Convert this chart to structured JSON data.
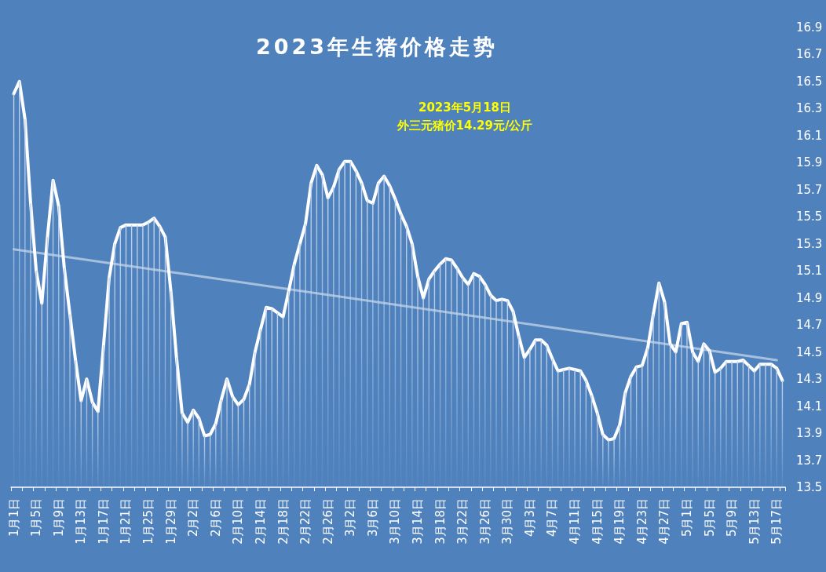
{
  "chart_data": {
    "type": "line",
    "title": "2023年生猪价格走势",
    "annotations": [
      "2023年5月18日",
      "外三元猪价14.29元/公斤"
    ],
    "categories": [
      "1月1日",
      null,
      null,
      null,
      "1月5日",
      null,
      null,
      null,
      "1月9日",
      null,
      null,
      null,
      "1月13日",
      null,
      null,
      null,
      "1月17日",
      null,
      null,
      null,
      "1月21日",
      null,
      null,
      null,
      "1月25日",
      null,
      null,
      null,
      "1月29日",
      null,
      null,
      null,
      "2月2日",
      null,
      null,
      null,
      "2月6日",
      null,
      null,
      null,
      "2月10日",
      null,
      null,
      null,
      "2月14日",
      null,
      null,
      null,
      "2月18日",
      null,
      null,
      null,
      "2月22日",
      null,
      null,
      null,
      "2月26日",
      null,
      null,
      null,
      "3月2日",
      null,
      null,
      null,
      "3月6日",
      null,
      null,
      null,
      "3月10日",
      null,
      null,
      null,
      "3月14日",
      null,
      null,
      null,
      "3月18日",
      null,
      null,
      null,
      "3月22日",
      null,
      null,
      null,
      "3月26日",
      null,
      null,
      null,
      "3月30日",
      null,
      null,
      null,
      "4月3日",
      null,
      null,
      null,
      "4月7日",
      null,
      null,
      null,
      "4月11日",
      null,
      null,
      null,
      "4月15日",
      null,
      null,
      null,
      "4月19日",
      null,
      null,
      null,
      "4月23日",
      null,
      null,
      null,
      "4月27日",
      null,
      null,
      null,
      "5月1日",
      null,
      null,
      null,
      "5月5日",
      null,
      null,
      null,
      "5月9日",
      null,
      null,
      null,
      "5月13日",
      null,
      null,
      null,
      "5月17日",
      null
    ],
    "series": [
      {
        "type": "bar",
        "color": "#c2d5ee",
        "values": [
          16.41,
          16.5,
          16.22,
          15.6,
          15.1,
          14.86,
          15.35,
          15.77,
          15.58,
          15.12,
          14.78,
          14.44,
          14.14,
          14.3,
          14.13,
          14.06,
          14.55,
          15.05,
          15.3,
          15.42,
          15.44,
          15.44,
          15.44,
          15.44,
          15.46,
          15.49,
          15.43,
          15.35,
          14.95,
          14.46,
          14.05,
          13.98,
          14.07,
          14.01,
          13.88,
          13.89,
          13.97,
          14.15,
          14.3,
          14.17,
          14.11,
          14.15,
          14.26,
          14.5,
          14.67,
          14.83,
          14.82,
          14.79,
          14.76,
          14.95,
          15.15,
          15.3,
          15.45,
          15.75,
          15.88,
          15.81,
          15.64,
          15.72,
          15.85,
          15.91,
          15.91,
          15.84,
          15.75,
          15.62,
          15.6,
          15.75,
          15.8,
          15.73,
          15.63,
          15.52,
          15.43,
          15.3,
          15.06,
          14.9,
          15.04,
          15.1,
          15.15,
          15.19,
          15.18,
          15.12,
          15.05,
          15.0,
          15.08,
          15.06,
          15.0,
          14.92,
          14.88,
          14.89,
          14.88,
          14.8,
          14.62,
          14.46,
          14.52,
          14.59,
          14.59,
          14.55,
          14.45,
          14.36,
          14.37,
          14.38,
          14.37,
          14.36,
          14.29,
          14.18,
          14.05,
          13.89,
          13.85,
          13.86,
          13.96,
          14.2,
          14.32,
          14.39,
          14.4,
          14.53,
          14.78,
          15.01,
          14.87,
          14.56,
          14.5,
          14.71,
          14.72,
          14.5,
          14.43,
          14.56,
          14.51,
          14.35,
          14.38,
          14.43,
          14.43,
          14.43,
          14.44,
          14.4,
          14.36,
          14.41,
          14.41,
          14.41,
          14.38,
          14.29
        ]
      },
      {
        "type": "line",
        "color": "#ffffff",
        "values": [
          16.41,
          16.5,
          16.22,
          15.6,
          15.1,
          14.86,
          15.35,
          15.77,
          15.58,
          15.12,
          14.78,
          14.44,
          14.14,
          14.3,
          14.13,
          14.06,
          14.55,
          15.05,
          15.3,
          15.42,
          15.44,
          15.44,
          15.44,
          15.44,
          15.46,
          15.49,
          15.43,
          15.35,
          14.95,
          14.46,
          14.05,
          13.98,
          14.07,
          14.01,
          13.88,
          13.89,
          13.97,
          14.15,
          14.3,
          14.17,
          14.11,
          14.15,
          14.26,
          14.5,
          14.67,
          14.83,
          14.82,
          14.79,
          14.76,
          14.95,
          15.15,
          15.3,
          15.45,
          15.75,
          15.88,
          15.81,
          15.64,
          15.72,
          15.85,
          15.91,
          15.91,
          15.84,
          15.75,
          15.62,
          15.6,
          15.75,
          15.8,
          15.73,
          15.63,
          15.52,
          15.43,
          15.3,
          15.06,
          14.9,
          15.04,
          15.1,
          15.15,
          15.19,
          15.18,
          15.12,
          15.05,
          15.0,
          15.08,
          15.06,
          15.0,
          14.92,
          14.88,
          14.89,
          14.88,
          14.8,
          14.62,
          14.46,
          14.52,
          14.59,
          14.59,
          14.55,
          14.45,
          14.36,
          14.37,
          14.38,
          14.37,
          14.36,
          14.29,
          14.18,
          14.05,
          13.89,
          13.85,
          13.86,
          13.96,
          14.2,
          14.32,
          14.39,
          14.4,
          14.53,
          14.78,
          15.01,
          14.87,
          14.56,
          14.5,
          14.71,
          14.72,
          14.5,
          14.43,
          14.56,
          14.51,
          14.35,
          14.38,
          14.43,
          14.43,
          14.43,
          14.44,
          14.4,
          14.36,
          14.41,
          14.41,
          14.41,
          14.38,
          14.29
        ]
      },
      {
        "type": "line",
        "color": "#a7c0de",
        "x": [
          "1月1日",
          "5月17日"
        ],
        "values": [
          15.26,
          14.44
        ]
      }
    ],
    "ylim": [
      13.5,
      16.9
    ],
    "yticks": [
      13.5,
      13.7,
      13.9,
      14.1,
      14.3,
      14.5,
      14.7,
      14.9,
      15.1,
      15.3,
      15.5,
      15.7,
      15.9,
      16.1,
      16.3,
      16.5,
      16.7,
      16.9
    ],
    "grid": false,
    "marker": "none",
    "line_style": "solid"
  }
}
